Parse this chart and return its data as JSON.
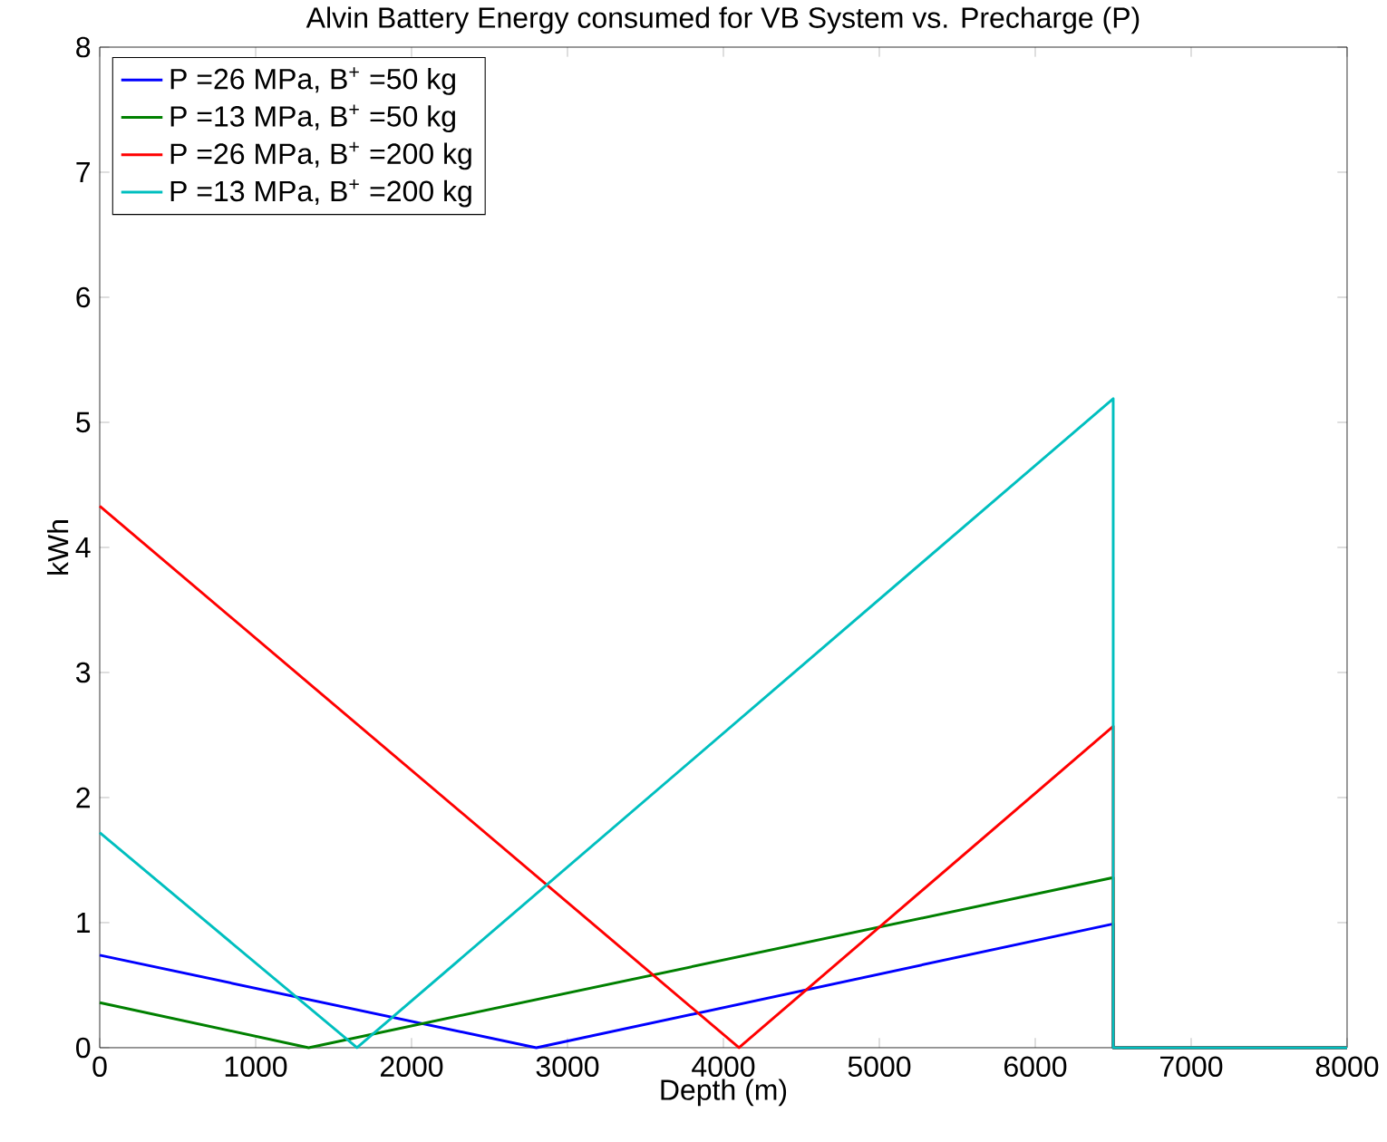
{
  "chart_data": {
    "type": "line",
    "title": "Alvin Battery Energy consumed for VB System vs. Precharge (P)",
    "xlabel": "Depth (m)",
    "ylabel": "kWh",
    "xlim": [
      0,
      8000
    ],
    "ylim": [
      0,
      8
    ],
    "xticks": [
      0,
      1000,
      2000,
      3000,
      4000,
      5000,
      6000,
      7000,
      8000
    ],
    "yticks": [
      0,
      1,
      2,
      3,
      4,
      5,
      6,
      7,
      8
    ],
    "grid": false,
    "legend": "top left",
    "marker": "none",
    "line_style": "solid",
    "series": [
      {
        "name": "P =26 MPa, B$^{+}$ =50 kg",
        "color": "#0000ff",
        "x": [
          0,
          2800,
          6500,
          6500,
          8000
        ],
        "values": [
          0.74,
          0,
          0.99,
          0,
          0
        ]
      },
      {
        "name": "P =13 MPa, B$^{+}$ =50 kg",
        "color": "#008000",
        "x": [
          0,
          1340,
          6500,
          6500,
          8000
        ],
        "values": [
          0.36,
          0,
          1.36,
          0,
          0
        ]
      },
      {
        "name": "P =26 MPa, B$^{+}$ =200 kg",
        "color": "#ff0000",
        "x": [
          0,
          4100,
          6500,
          6500,
          8000
        ],
        "values": [
          4.33,
          0,
          2.57,
          0,
          0
        ]
      },
      {
        "name": "P =13 MPa, B$^{+}$ =200 kg",
        "color": "#00bfbf",
        "x": [
          0,
          1650,
          6500,
          6500,
          8000
        ],
        "values": [
          1.72,
          0,
          5.19,
          0,
          0
        ]
      }
    ]
  }
}
